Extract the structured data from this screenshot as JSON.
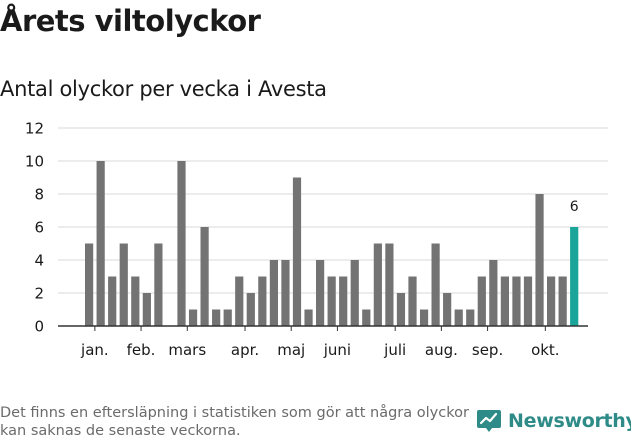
{
  "header": {
    "title": "Årets viltolyckor",
    "subtitle": "Antal olyckor per vecka i Avesta"
  },
  "footer": {
    "note": "Det finns en eftersläpning i statistiken som gör att några olyckor kan saknas de senaste veckorna.",
    "brand": "Newsworthy",
    "brand_icon": "newsworthy-logo-icon"
  },
  "colors": {
    "bar": "#737373",
    "highlight": "#1aa59b",
    "grid": "#d9d9d9",
    "axis": "#333333",
    "brand": "#2e8b87"
  },
  "chart_data": {
    "type": "bar",
    "title": "Antal olyckor per vecka i Avesta",
    "xlabel": "",
    "ylabel": "",
    "ylim": [
      0,
      12
    ],
    "yticks": [
      0,
      2,
      4,
      6,
      8,
      10,
      12
    ],
    "weeks": [
      1,
      2,
      3,
      4,
      5,
      6,
      7,
      8,
      9,
      10,
      11,
      12,
      13,
      14,
      15,
      16,
      17,
      18,
      19,
      20,
      21,
      22,
      23,
      24,
      25,
      26,
      27,
      28,
      29,
      30,
      31,
      32,
      33,
      34,
      35,
      36,
      37,
      38,
      39,
      40,
      41,
      42,
      43
    ],
    "values": [
      5,
      10,
      3,
      5,
      3,
      2,
      5,
      0,
      10,
      1,
      6,
      1,
      1,
      3,
      2,
      3,
      4,
      4,
      9,
      1,
      4,
      3,
      3,
      4,
      1,
      5,
      5,
      2,
      3,
      1,
      5,
      2,
      1,
      1,
      3,
      4,
      3,
      3,
      3,
      8,
      3,
      3,
      6
    ],
    "highlight_index": 42,
    "highlight_label": "6",
    "month_labels": [
      {
        "label": "jan.",
        "at_week": 1.5
      },
      {
        "label": "feb.",
        "at_week": 5.5
      },
      {
        "label": "mars",
        "at_week": 9.5
      },
      {
        "label": "apr.",
        "at_week": 14.5
      },
      {
        "label": "maj",
        "at_week": 18.5
      },
      {
        "label": "juni",
        "at_week": 22.5
      },
      {
        "label": "juli",
        "at_week": 27.5
      },
      {
        "label": "aug.",
        "at_week": 31.5
      },
      {
        "label": "sep.",
        "at_week": 35.5
      },
      {
        "label": "okt.",
        "at_week": 40.5
      }
    ],
    "grid": true,
    "legend": "none"
  }
}
